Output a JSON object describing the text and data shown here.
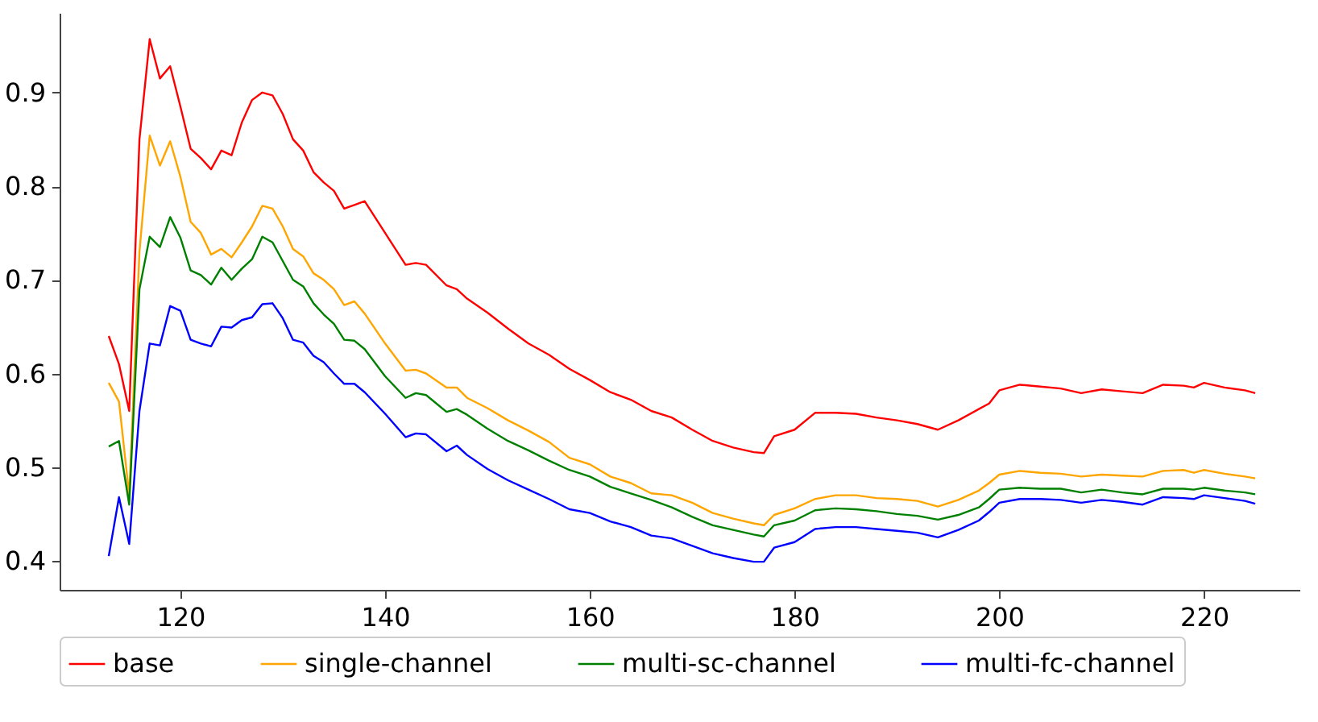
{
  "chart_data": {
    "type": "line",
    "x": [
      113,
      114,
      115,
      116,
      117,
      118,
      119,
      120,
      121,
      122,
      123,
      124,
      125,
      126,
      127,
      128,
      129,
      130,
      131,
      132,
      133,
      134,
      135,
      136,
      137,
      138,
      140,
      142,
      143,
      144,
      146,
      147,
      148,
      150,
      152,
      154,
      156,
      158,
      160,
      162,
      164,
      166,
      168,
      170,
      172,
      174,
      176,
      177,
      178,
      180,
      182,
      184,
      186,
      188,
      190,
      192,
      194,
      196,
      198,
      199,
      200,
      202,
      204,
      206,
      208,
      210,
      212,
      214,
      216,
      218,
      219,
      220,
      222,
      224,
      225
    ],
    "series": [
      {
        "name": "base",
        "color": "#ff0000",
        "values": [
          0.64,
          0.61,
          0.56,
          0.85,
          0.957,
          0.915,
          0.928,
          0.885,
          0.84,
          0.83,
          0.818,
          0.838,
          0.833,
          0.868,
          0.892,
          0.9,
          0.897,
          0.877,
          0.85,
          0.838,
          0.815,
          0.804,
          0.795,
          0.776,
          0.78,
          0.784,
          0.75,
          0.716,
          0.718,
          0.716,
          0.694,
          0.69,
          0.68,
          0.665,
          0.648,
          0.632,
          0.62,
          0.605,
          0.593,
          0.58,
          0.572,
          0.56,
          0.553,
          0.54,
          0.528,
          0.521,
          0.516,
          0.515,
          0.533,
          0.54,
          0.558,
          0.558,
          0.557,
          0.553,
          0.55,
          0.546,
          0.54,
          0.55,
          0.562,
          0.568,
          0.582,
          0.588,
          0.586,
          0.584,
          0.579,
          0.583,
          0.581,
          0.579,
          0.588,
          0.587,
          0.585,
          0.59,
          0.585,
          0.582,
          0.579
        ]
      },
      {
        "name": "single-channel",
        "color": "#ffa500",
        "values": [
          0.59,
          0.57,
          0.47,
          0.73,
          0.854,
          0.822,
          0.848,
          0.81,
          0.762,
          0.75,
          0.727,
          0.733,
          0.724,
          0.74,
          0.757,
          0.779,
          0.776,
          0.757,
          0.733,
          0.725,
          0.707,
          0.7,
          0.69,
          0.673,
          0.677,
          0.664,
          0.632,
          0.603,
          0.604,
          0.6,
          0.585,
          0.585,
          0.574,
          0.563,
          0.55,
          0.539,
          0.527,
          0.51,
          0.503,
          0.49,
          0.483,
          0.472,
          0.47,
          0.462,
          0.451,
          0.445,
          0.44,
          0.438,
          0.449,
          0.456,
          0.466,
          0.47,
          0.47,
          0.467,
          0.466,
          0.464,
          0.458,
          0.465,
          0.475,
          0.483,
          0.492,
          0.496,
          0.494,
          0.493,
          0.49,
          0.492,
          0.491,
          0.49,
          0.496,
          0.497,
          0.494,
          0.497,
          0.493,
          0.49,
          0.488
        ]
      },
      {
        "name": "multi-sc-channel",
        "color": "#008000",
        "values": [
          0.522,
          0.528,
          0.46,
          0.69,
          0.746,
          0.735,
          0.767,
          0.745,
          0.71,
          0.705,
          0.695,
          0.713,
          0.7,
          0.712,
          0.722,
          0.746,
          0.74,
          0.72,
          0.7,
          0.693,
          0.675,
          0.663,
          0.653,
          0.636,
          0.635,
          0.626,
          0.597,
          0.574,
          0.579,
          0.577,
          0.559,
          0.562,
          0.556,
          0.541,
          0.528,
          0.518,
          0.507,
          0.497,
          0.49,
          0.479,
          0.472,
          0.465,
          0.457,
          0.447,
          0.438,
          0.433,
          0.428,
          0.426,
          0.438,
          0.443,
          0.454,
          0.456,
          0.455,
          0.453,
          0.45,
          0.448,
          0.444,
          0.449,
          0.457,
          0.466,
          0.476,
          0.478,
          0.477,
          0.477,
          0.473,
          0.476,
          0.473,
          0.471,
          0.477,
          0.477,
          0.476,
          0.478,
          0.475,
          0.473,
          0.471
        ]
      },
      {
        "name": "multi-fc-channel",
        "color": "#0000ff",
        "values": [
          0.405,
          0.468,
          0.418,
          0.56,
          0.632,
          0.63,
          0.672,
          0.667,
          0.636,
          0.632,
          0.629,
          0.65,
          0.649,
          0.657,
          0.66,
          0.674,
          0.675,
          0.659,
          0.636,
          0.633,
          0.619,
          0.612,
          0.6,
          0.589,
          0.589,
          0.58,
          0.557,
          0.532,
          0.536,
          0.535,
          0.517,
          0.523,
          0.513,
          0.498,
          0.486,
          0.476,
          0.466,
          0.455,
          0.451,
          0.442,
          0.436,
          0.427,
          0.424,
          0.416,
          0.408,
          0.403,
          0.399,
          0.399,
          0.414,
          0.42,
          0.434,
          0.436,
          0.436,
          0.434,
          0.432,
          0.43,
          0.425,
          0.433,
          0.443,
          0.452,
          0.462,
          0.466,
          0.466,
          0.465,
          0.462,
          0.465,
          0.463,
          0.46,
          0.468,
          0.467,
          0.466,
          0.47,
          0.467,
          0.464,
          0.461
        ]
      }
    ],
    "xlim": [
      108.2,
      229.4
    ],
    "xticks": [
      120,
      140,
      160,
      180,
      200,
      220
    ],
    "ylim": [
      0.369,
      0.985
    ],
    "yticks": [
      0.4,
      0.5,
      0.6,
      0.7,
      0.8,
      0.9
    ],
    "grid": false,
    "legend": "bottom",
    "marker": "none",
    "line_style": "solid"
  }
}
